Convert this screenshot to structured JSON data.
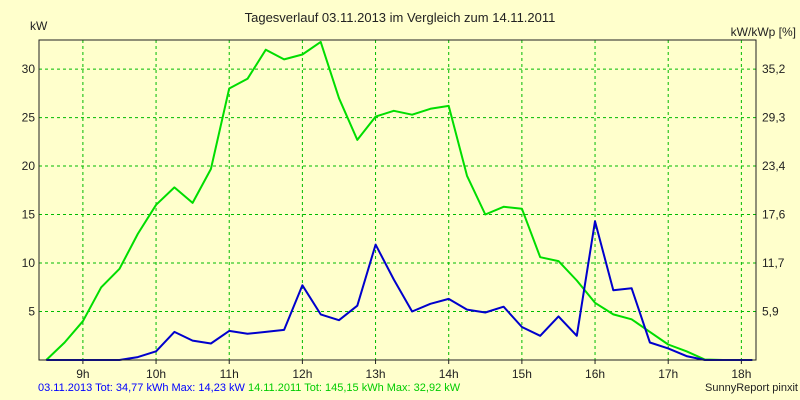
{
  "chart_data": {
    "type": "line",
    "title": "Tagesverlauf 03.11.2013 im Vergleich zum 14.11.2011",
    "ylabel_left": "kW",
    "ylabel_right": "kW/kWp [%]",
    "x_ticks": [
      "9h",
      "10h",
      "11h",
      "12h",
      "13h",
      "14h",
      "15h",
      "16h",
      "17h",
      "18h"
    ],
    "y_ticks_left": [
      5,
      10,
      15,
      20,
      25,
      30
    ],
    "y_ticks_right": [
      "5,9",
      "11,7",
      "17,6",
      "23,4",
      "29,3",
      "35,2"
    ],
    "xlim": [
      8.4,
      18.2
    ],
    "ylim": [
      0,
      33
    ],
    "grid": true,
    "series": [
      {
        "name": "03.11.2013",
        "color": "#0000cc",
        "x": [
          8.5,
          8.75,
          9.0,
          9.25,
          9.5,
          9.75,
          10.0,
          10.25,
          10.5,
          10.75,
          11.0,
          11.25,
          11.5,
          11.75,
          12.0,
          12.25,
          12.5,
          12.75,
          13.0,
          13.25,
          13.5,
          13.75,
          14.0,
          14.25,
          14.5,
          14.75,
          15.0,
          15.25,
          15.5,
          15.75,
          16.0,
          16.25,
          16.5,
          16.75,
          17.0,
          17.25,
          17.5,
          17.75,
          18.0,
          18.15
        ],
        "y": [
          0,
          0,
          0,
          0,
          0,
          0.3,
          0.9,
          2.9,
          2.0,
          1.7,
          3.0,
          2.7,
          2.9,
          3.1,
          7.7,
          4.7,
          4.1,
          5.6,
          11.9,
          8.3,
          5.0,
          5.8,
          6.3,
          5.2,
          4.9,
          5.5,
          3.4,
          2.5,
          4.5,
          2.5,
          14.3,
          7.2,
          7.4,
          1.8,
          1.2,
          0.4,
          0,
          0,
          0,
          0
        ]
      },
      {
        "name": "14.11.2011",
        "color": "#00dd00",
        "x": [
          8.5,
          8.75,
          9.0,
          9.25,
          9.5,
          9.75,
          10.0,
          10.25,
          10.5,
          10.75,
          11.0,
          11.25,
          11.5,
          11.75,
          12.0,
          12.25,
          12.5,
          12.75,
          13.0,
          13.25,
          13.5,
          13.75,
          14.0,
          14.25,
          14.5,
          14.75,
          15.0,
          15.25,
          15.5,
          15.75,
          16.0,
          16.25,
          16.5,
          16.75,
          17.0,
          17.25,
          17.5,
          17.75,
          18.0,
          18.15
        ],
        "y": [
          0,
          1.8,
          4.0,
          7.5,
          9.4,
          13.0,
          16.0,
          17.8,
          16.2,
          19.7,
          28.0,
          29.0,
          32.0,
          31.0,
          31.5,
          32.8,
          27.0,
          22.7,
          25.1,
          25.7,
          25.3,
          25.9,
          26.2,
          19.0,
          15.0,
          15.8,
          15.6,
          10.6,
          10.2,
          8.2,
          5.9,
          4.7,
          4.2,
          2.9,
          1.6,
          0.9,
          0.05,
          0,
          0,
          0
        ]
      }
    ],
    "footer": {
      "blue_text": "03.11.2013 Tot: 34,77 kWh Max: 14,23 kW",
      "green_text": " 14.11.2011 Tot: 145,15 kWh Max: 32,92 kW",
      "right_text": "SunnyReport pinxit"
    }
  }
}
